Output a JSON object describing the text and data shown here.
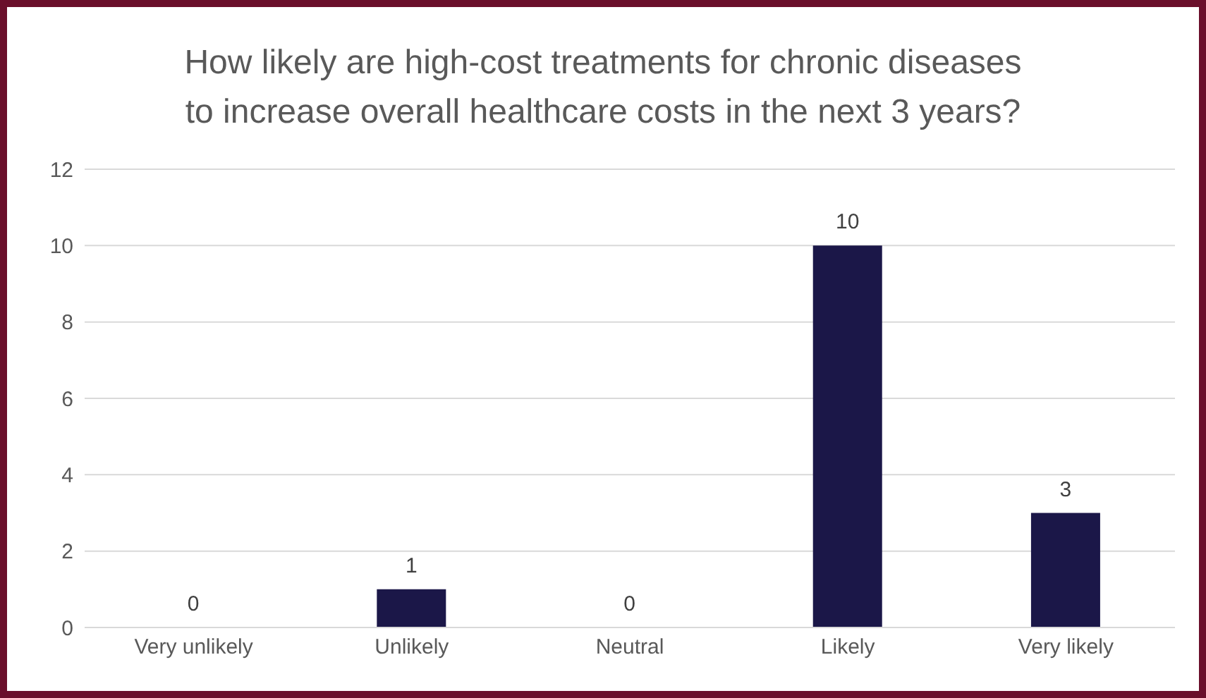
{
  "chart_data": {
    "type": "bar",
    "title": "How likely are high-cost treatments for chronic diseases\nto increase overall healthcare costs in the next 3 years?",
    "categories": [
      "Very unlikely",
      "Unlikely",
      "Neutral",
      "Likely",
      "Very likely"
    ],
    "values": [
      0,
      1,
      0,
      10,
      3
    ],
    "color": "#1b1748",
    "ylim": [
      0,
      12
    ],
    "yticks": [
      0,
      2,
      4,
      6,
      8,
      10,
      12
    ],
    "grid": "y",
    "data_labels": true,
    "legend": false
  }
}
